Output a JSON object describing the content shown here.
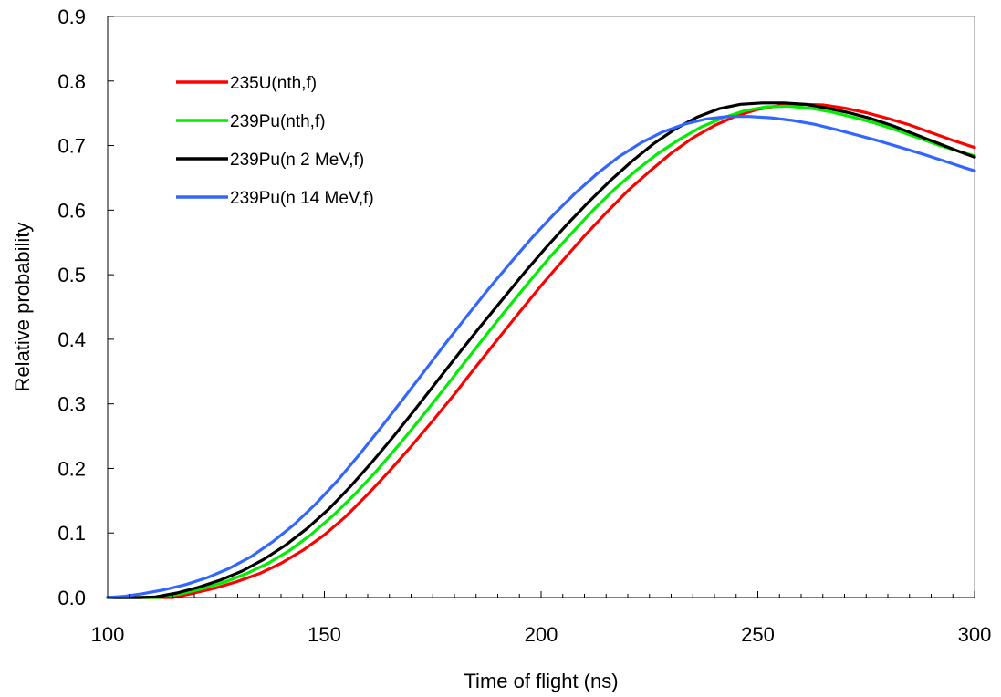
{
  "chart_data": {
    "type": "line",
    "title": "",
    "xlabel": "Time of flight (ns)",
    "ylabel": "Relative probability",
    "xlim": [
      100,
      300
    ],
    "ylim": [
      0,
      0.9
    ],
    "x_ticks": [
      100,
      150,
      200,
      250,
      300
    ],
    "x_tick_labels": [
      "100",
      "150",
      "200",
      "250",
      "300"
    ],
    "y_ticks": [
      0,
      0.1,
      0.2,
      0.3,
      0.4,
      0.5,
      0.6,
      0.7,
      0.8,
      0.9
    ],
    "y_tick_labels": [
      "0.0",
      "0.1",
      "0.2",
      "0.3",
      "0.4",
      "0.5",
      "0.6",
      "0.7",
      "0.8",
      "0.9"
    ],
    "x_minor_step": 5,
    "grid": false,
    "legend_position": "top-left",
    "series": [
      {
        "name": "235U(nth,f)",
        "color": "#ff0000",
        "x": [
          100,
          108,
          115,
          120,
          125,
          130,
          135,
          140,
          145,
          150,
          155,
          160,
          165,
          170,
          175,
          180,
          185,
          190,
          195,
          200,
          205,
          210,
          215,
          220,
          225,
          230,
          235,
          240,
          245,
          250,
          255,
          260,
          265,
          270,
          275,
          280,
          285,
          290,
          295,
          300
        ],
        "y": [
          0.0,
          0.0,
          0.0,
          0.007,
          0.015,
          0.025,
          0.037,
          0.053,
          0.073,
          0.097,
          0.126,
          0.16,
          0.196,
          0.234,
          0.274,
          0.315,
          0.358,
          0.4,
          0.442,
          0.483,
          0.522,
          0.56,
          0.596,
          0.63,
          0.66,
          0.688,
          0.712,
          0.731,
          0.746,
          0.756,
          0.762,
          0.764,
          0.763,
          0.758,
          0.751,
          0.742,
          0.732,
          0.72,
          0.708,
          0.697
        ]
      },
      {
        "name": "239Pu(nth,f)",
        "color": "#00ee00",
        "x": [
          100,
          108,
          112,
          117,
          122,
          127,
          132,
          137,
          142,
          147,
          152,
          157,
          162,
          167,
          172,
          177,
          182,
          187,
          192,
          197,
          202,
          207,
          212,
          217,
          222,
          227,
          232,
          237,
          242,
          247,
          252,
          257,
          262,
          267,
          272,
          277,
          282,
          287,
          292,
          297,
          300
        ],
        "y": [
          0.0,
          0.0,
          0.0,
          0.006,
          0.014,
          0.024,
          0.037,
          0.053,
          0.073,
          0.098,
          0.127,
          0.16,
          0.196,
          0.235,
          0.276,
          0.318,
          0.361,
          0.404,
          0.446,
          0.487,
          0.527,
          0.564,
          0.6,
          0.633,
          0.662,
          0.688,
          0.71,
          0.729,
          0.743,
          0.754,
          0.76,
          0.761,
          0.758,
          0.752,
          0.744,
          0.735,
          0.724,
          0.712,
          0.7,
          0.69,
          0.684
        ]
      },
      {
        "name": "239Pu(n 2 MeV,f)",
        "color": "#000000",
        "x": [
          100,
          107,
          111,
          116,
          121,
          126,
          131,
          136,
          141,
          146,
          151,
          156,
          161,
          166,
          171,
          176,
          181,
          186,
          191,
          196,
          201,
          206,
          211,
          216,
          221,
          226,
          231,
          236,
          241,
          246,
          251,
          256,
          261,
          266,
          271,
          276,
          281,
          286,
          291,
          296,
          300
        ],
        "y": [
          0.0,
          0.0,
          0.001,
          0.007,
          0.016,
          0.027,
          0.041,
          0.059,
          0.081,
          0.107,
          0.137,
          0.172,
          0.21,
          0.25,
          0.292,
          0.335,
          0.378,
          0.42,
          0.461,
          0.502,
          0.541,
          0.578,
          0.613,
          0.646,
          0.676,
          0.703,
          0.726,
          0.744,
          0.757,
          0.764,
          0.766,
          0.766,
          0.764,
          0.758,
          0.751,
          0.742,
          0.731,
          0.718,
          0.705,
          0.692,
          0.682
        ]
      },
      {
        "name": "239Pu(n 14 MeV,f)",
        "color": "#3366ff",
        "x": [
          100,
          104,
          108,
          113,
          118,
          123,
          128,
          133,
          138,
          143,
          148,
          153,
          158,
          163,
          168,
          173,
          178,
          183,
          188,
          193,
          198,
          203,
          208,
          213,
          218,
          223,
          228,
          233,
          238,
          243,
          248,
          253,
          258,
          263,
          268,
          273,
          278,
          283,
          288,
          293,
          298,
          300
        ],
        "y": [
          0.0,
          0.002,
          0.006,
          0.012,
          0.02,
          0.031,
          0.045,
          0.063,
          0.086,
          0.113,
          0.145,
          0.181,
          0.221,
          0.263,
          0.306,
          0.35,
          0.394,
          0.437,
          0.479,
          0.519,
          0.558,
          0.594,
          0.627,
          0.657,
          0.683,
          0.704,
          0.721,
          0.733,
          0.741,
          0.745,
          0.745,
          0.743,
          0.739,
          0.733,
          0.725,
          0.716,
          0.707,
          0.697,
          0.687,
          0.676,
          0.665,
          0.661
        ]
      }
    ]
  }
}
